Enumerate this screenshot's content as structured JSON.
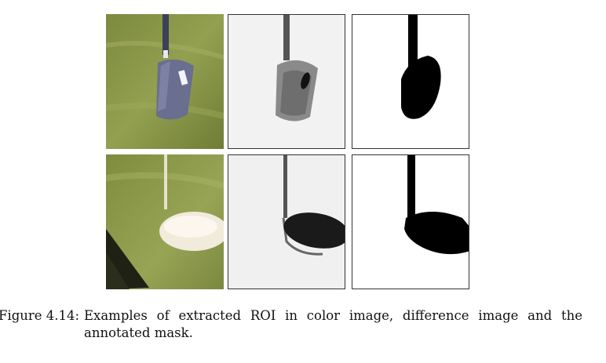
{
  "figure": {
    "label": "Figure 4.14:",
    "caption": "Examples of extracted ROI in color image, difference image and the annotated mask.",
    "rows": [
      {
        "name": "row-1",
        "panels": [
          "color image",
          "difference image",
          "annotated mask"
        ]
      },
      {
        "name": "row-2",
        "panels": [
          "color image",
          "difference image",
          "annotated mask"
        ]
      }
    ]
  },
  "colors": {
    "grass_dark": "#6b7a35",
    "grass_light": "#a4ad5e",
    "club_head": "#6a6e8f",
    "mask_fill": "#000000",
    "mask_background": "#ffffff"
  }
}
